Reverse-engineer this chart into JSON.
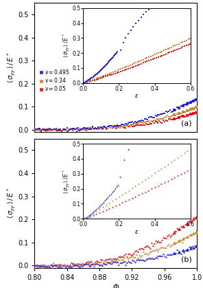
{
  "colors": {
    "blue": "#2222ee",
    "orange": "#cc8833",
    "red": "#ee1111"
  },
  "panel_a_label": "(a)",
  "panel_b_label": "(b)",
  "bg_color": "#e8e8e8"
}
